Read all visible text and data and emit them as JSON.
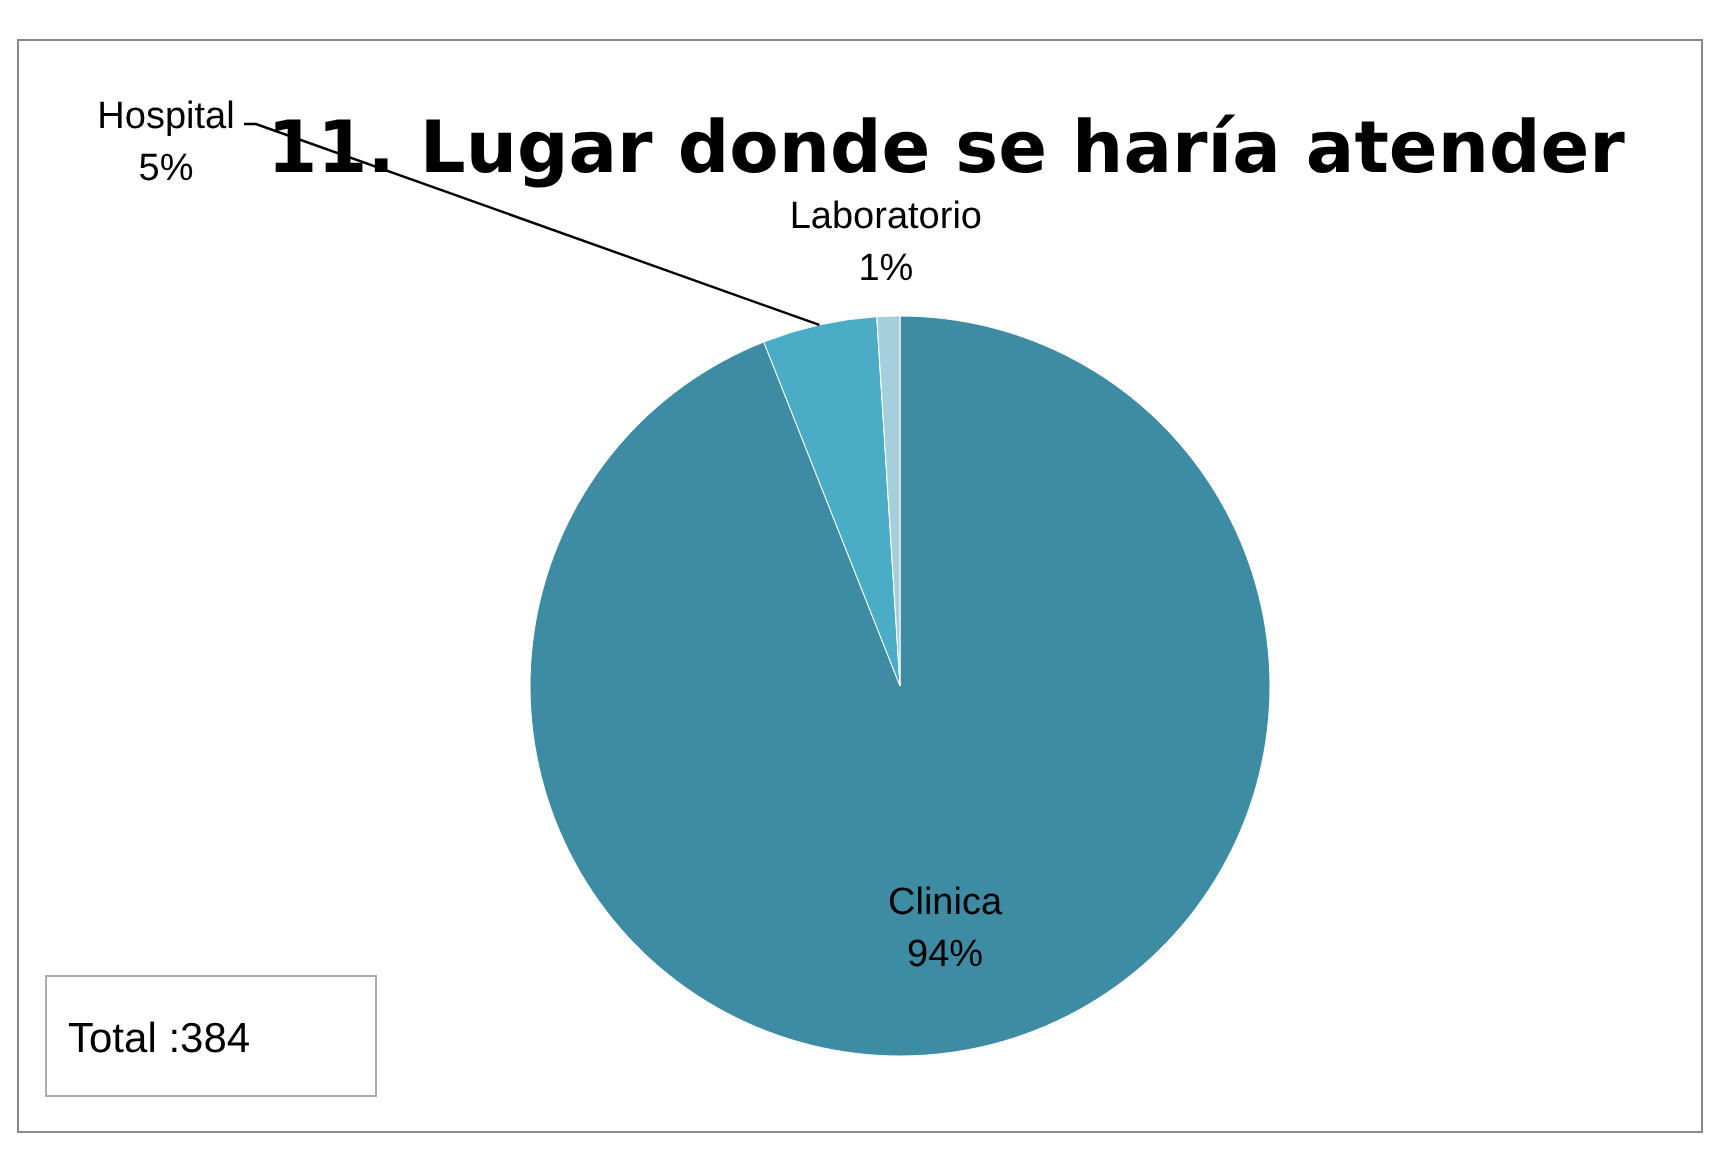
{
  "chart_data": {
    "type": "pie",
    "title": "11. Lugar donde se haría atender",
    "categories": [
      "Clinica",
      "Hospital",
      "Laboratorio"
    ],
    "values": [
      94,
      5,
      1
    ],
    "colors": [
      "#3e8ca4",
      "#4bacc6",
      "#a5cfdc"
    ],
    "value_labels": [
      "94%",
      "5%",
      "1%"
    ],
    "annotations": [
      "Total :384"
    ]
  }
}
